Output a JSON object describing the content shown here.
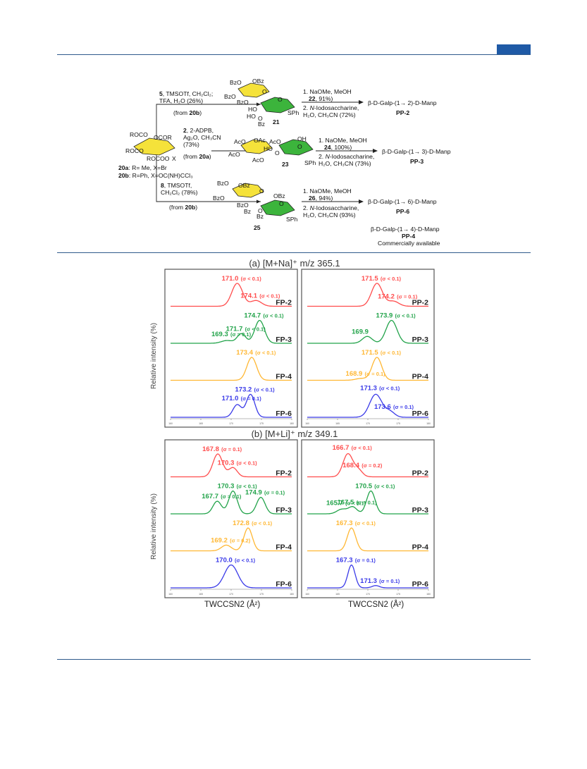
{
  "scheme": {
    "donor_lines": [
      "ROCO",
      "OCOR",
      "ROCO",
      "ROCOO",
      "X"
    ],
    "legend_a": [
      "20a",
      ": R= Me, X=Br"
    ],
    "legend_b": [
      "20b",
      ": R=Ph, X=OC(NH)CCl₃"
    ],
    "route1": {
      "reagents": [
        "5",
        ", TMSOTf, CH₂Cl₂;",
        "TFA, H₂O (26%)",
        "(from ",
        "20b",
        ")"
      ],
      "compound": "21",
      "sugar_labels": [
        "BzO",
        "OBz",
        "BzO",
        "O",
        "BzO",
        "O",
        "HO",
        "HO",
        "O",
        "Bz",
        "SPh"
      ],
      "steps": [
        "1. NaOMe, MeOH",
        "22",
        ", 91%)",
        "2. ",
        "N",
        "-Iodosaccharine,",
        "H₂O, CH₃CN (72%)"
      ],
      "product_text": "β-D-Galp-(1→ 2)-D-Manp",
      "product_code": "PP-2"
    },
    "route2": {
      "reagents": [
        "2",
        ", 2-ADPB,",
        "Ag₂O, CH₃CN",
        "(73%)",
        "(from ",
        "20a",
        ")"
      ],
      "compound": "23",
      "sugar_labels": [
        "AcO",
        "OAc",
        "AcO",
        "OH",
        "AcO",
        "O",
        "HO",
        "AcO",
        "O",
        "SPh"
      ],
      "steps": [
        "1. NaOMe, MeOH",
        "24",
        ", 100%)",
        "2. ",
        "N",
        "-Iodosaccharine,",
        "H₂O, CH₃CN (73%)"
      ],
      "product_text": "β-D-Galp-(1→ 3)-D-Manp",
      "product_code": "PP-3"
    },
    "route3": {
      "reagents": [
        "8",
        ", TMSOTf,",
        "CH₂Cl₂ (78%)",
        "(from ",
        "20b",
        ")"
      ],
      "compound": "25",
      "sugar_labels": [
        "BzO",
        "OBz",
        "BzO",
        "O",
        "BzO",
        "O",
        "OBz",
        "Bz",
        "O",
        "Bz",
        "SPh"
      ],
      "steps": [
        "1. NaOMe, MeOH",
        "26",
        ", 94%)",
        "2. ",
        "N",
        "-Iodosaccharine,",
        "H₂O, CH₃CN (93%)"
      ],
      "product_text": "β-D-Galp-(1→ 6)-D-Manp",
      "product_code": "PP-6"
    },
    "commercial": {
      "product_text": "β-D-Galp-(1→ 4)-D-Manp",
      "product_code": "PP-4",
      "note": "Commercially available"
    }
  },
  "figure": {
    "title_a": "(a) [M+Na]⁺ m/z 365.1",
    "title_b": "(b) [M+Li]⁺ m/z 349.1",
    "ylabel": "Relative intensity (%)",
    "xlabel": "TWCCSN2 (Å²)"
  },
  "chart_data": [
    {
      "type": "line",
      "title": "(a) [M+Na]⁺ m/z 365.1",
      "ylabel": "Relative intensity (%)",
      "xlabel": "TWCCSN2 (Å²)",
      "xlim": [
        160,
        180
      ],
      "panels": [
        {
          "side": "FP",
          "series": [
            {
              "name": "FP-2",
              "color": "#ff4d4d",
              "peaks": [
                {
                  "x": 171.0,
                  "h": 1.0,
                  "w": 0.9
                },
                {
                  "x": 174.1,
                  "h": 0.25,
                  "w": 0.9
                }
              ],
              "labels": [
                {
                  "x": 171.0,
                  "text": "171.0",
                  "sigma": "(σ < 0.1)"
                },
                {
                  "x": 174.1,
                  "text": "174.1",
                  "sigma": "(σ < 0.1)"
                }
              ]
            },
            {
              "name": "FP-3",
              "color": "#22a34a",
              "peaks": [
                {
                  "x": 169.3,
                  "h": 0.12,
                  "w": 0.9
                },
                {
                  "x": 171.7,
                  "h": 0.42,
                  "w": 0.7
                },
                {
                  "x": 174.7,
                  "h": 1.0,
                  "w": 0.8
                }
              ],
              "labels": [
                {
                  "x": 169.3,
                  "text": "169.3",
                  "sigma": "(σ = 0.1)"
                },
                {
                  "x": 171.7,
                  "text": "171.7",
                  "sigma": "(σ < 0.1)"
                },
                {
                  "x": 174.7,
                  "text": "174.7",
                  "sigma": "(σ < 0.1)"
                }
              ]
            },
            {
              "name": "FP-4",
              "color": "#ffb733",
              "peaks": [
                {
                  "x": 173.4,
                  "h": 1.0,
                  "w": 0.8
                }
              ],
              "labels": [
                {
                  "x": 173.4,
                  "text": "173.4",
                  "sigma": "(σ < 0.1)"
                }
              ]
            },
            {
              "name": "FP-6",
              "color": "#3a3ae8",
              "peaks": [
                {
                  "x": 171.0,
                  "h": 0.55,
                  "w": 0.7
                },
                {
                  "x": 173.2,
                  "h": 1.0,
                  "w": 0.7
                }
              ],
              "labels": [
                {
                  "x": 171.0,
                  "text": "171.0",
                  "sigma": "(σ = 0.1)"
                },
                {
                  "x": 173.2,
                  "text": "173.2",
                  "sigma": "(σ < 0.1)"
                }
              ]
            }
          ]
        },
        {
          "side": "PP",
          "series": [
            {
              "name": "PP-2",
              "color": "#ff4d4d",
              "peaks": [
                {
                  "x": 171.5,
                  "h": 1.0,
                  "w": 0.9
                },
                {
                  "x": 174.2,
                  "h": 0.22,
                  "w": 0.9
                }
              ],
              "labels": [
                {
                  "x": 171.5,
                  "text": "171.5",
                  "sigma": "(σ < 0.1)"
                },
                {
                  "x": 174.2,
                  "text": "174.2",
                  "sigma": "(σ = 0.1)"
                }
              ]
            },
            {
              "name": "PP-3",
              "color": "#22a34a",
              "peaks": [
                {
                  "x": 169.9,
                  "h": 0.3,
                  "w": 0.8
                },
                {
                  "x": 173.9,
                  "h": 1.0,
                  "w": 0.9
                }
              ],
              "labels": [
                {
                  "x": 169.9,
                  "text": "169.9",
                  "sigma": ""
                },
                {
                  "x": 173.9,
                  "text": "173.9",
                  "sigma": "(σ < 0.1)"
                }
              ]
            },
            {
              "name": "PP-4",
              "color": "#ffb733",
              "peaks": [
                {
                  "x": 168.9,
                  "h": 0.08,
                  "w": 0.9
                },
                {
                  "x": 171.5,
                  "h": 1.0,
                  "w": 0.8
                }
              ],
              "labels": [
                {
                  "x": 168.9,
                  "text": "168.9",
                  "sigma": "(σ = 0.1)"
                },
                {
                  "x": 171.5,
                  "text": "171.5",
                  "sigma": "(σ < 0.1)"
                }
              ]
            },
            {
              "name": "PP-6",
              "color": "#3a3ae8",
              "peaks": [
                {
                  "x": 171.3,
                  "h": 1.0,
                  "w": 1.0
                },
                {
                  "x": 173.6,
                  "h": 0.25,
                  "w": 0.8
                }
              ],
              "labels": [
                {
                  "x": 171.3,
                  "text": "171.3",
                  "sigma": "(σ < 0.1)"
                },
                {
                  "x": 173.6,
                  "text": "173.6",
                  "sigma": "(σ = 0.1)"
                }
              ]
            }
          ]
        }
      ]
    },
    {
      "type": "line",
      "title": "(b) [M+Li]⁺ m/z 349.1",
      "ylabel": "Relative intensity (%)",
      "xlabel": "TWCCSN2 (Å²)",
      "xlim": [
        160,
        180
      ],
      "panels": [
        {
          "side": "FP",
          "series": [
            {
              "name": "FP-2",
              "color": "#ff4d4d",
              "peaks": [
                {
                  "x": 167.8,
                  "h": 1.0,
                  "w": 0.8
                },
                {
                  "x": 170.3,
                  "h": 0.4,
                  "w": 0.7
                }
              ],
              "labels": [
                {
                  "x": 167.8,
                  "text": "167.8",
                  "sigma": "(σ = 0.1)"
                },
                {
                  "x": 170.3,
                  "text": "170.3",
                  "sigma": "(σ < 0.1)"
                }
              ]
            },
            {
              "name": "FP-3",
              "color": "#22a34a",
              "peaks": [
                {
                  "x": 167.7,
                  "h": 0.55,
                  "w": 0.7
                },
                {
                  "x": 170.3,
                  "h": 1.0,
                  "w": 0.7
                },
                {
                  "x": 174.9,
                  "h": 0.72,
                  "w": 0.7
                }
              ],
              "labels": [
                {
                  "x": 167.7,
                  "text": "167.7",
                  "sigma": "(σ = 0.1)"
                },
                {
                  "x": 170.3,
                  "text": "170.3",
                  "sigma": "(σ < 0.1)"
                },
                {
                  "x": 174.9,
                  "text": "174.9",
                  "sigma": "(σ = 0.1)"
                }
              ]
            },
            {
              "name": "FP-4",
              "color": "#ffb733",
              "peaks": [
                {
                  "x": 169.2,
                  "h": 0.25,
                  "w": 0.8
                },
                {
                  "x": 172.8,
                  "h": 1.0,
                  "w": 0.7
                }
              ],
              "labels": [
                {
                  "x": 169.2,
                  "text": "169.2",
                  "sigma": "(σ = 0.2)"
                },
                {
                  "x": 172.8,
                  "text": "172.8",
                  "sigma": "(σ < 0.1)"
                }
              ]
            },
            {
              "name": "FP-6",
              "color": "#3a3ae8",
              "peaks": [
                {
                  "x": 170.0,
                  "h": 1.0,
                  "w": 1.1
                }
              ],
              "labels": [
                {
                  "x": 170.0,
                  "text": "170.0",
                  "sigma": "(σ < 0.1)"
                }
              ]
            }
          ]
        },
        {
          "side": "PP",
          "series": [
            {
              "name": "PP-2",
              "color": "#ff4d4d",
              "peaks": [
                {
                  "x": 166.7,
                  "h": 1.0,
                  "w": 0.8
                },
                {
                  "x": 168.4,
                  "h": 0.3,
                  "w": 0.7
                }
              ],
              "labels": [
                {
                  "x": 166.7,
                  "text": "166.7",
                  "sigma": "(σ < 0.1)"
                },
                {
                  "x": 168.4,
                  "text": "168.4",
                  "sigma": "(σ = 0.2)"
                }
              ]
            },
            {
              "name": "PP-3",
              "color": "#22a34a",
              "peaks": [
                {
                  "x": 165.7,
                  "h": 0.2,
                  "w": 0.8
                },
                {
                  "x": 167.5,
                  "h": 0.3,
                  "w": 0.7
                },
                {
                  "x": 170.5,
                  "h": 1.0,
                  "w": 0.7
                }
              ],
              "labels": [
                {
                  "x": 165.7,
                  "text": "165.7",
                  "sigma": "(σ < 0.1)"
                },
                {
                  "x": 167.5,
                  "text": "167.5",
                  "sigma": "(σ = 0.1)"
                },
                {
                  "x": 170.5,
                  "text": "170.5",
                  "sigma": "(σ < 0.1)"
                }
              ]
            },
            {
              "name": "PP-4",
              "color": "#ffb733",
              "peaks": [
                {
                  "x": 167.3,
                  "h": 1.0,
                  "w": 0.7
                }
              ],
              "labels": [
                {
                  "x": 167.3,
                  "text": "167.3",
                  "sigma": "(σ < 0.1)"
                }
              ]
            },
            {
              "name": "PP-6",
              "color": "#3a3ae8",
              "peaks": [
                {
                  "x": 167.3,
                  "h": 1.0,
                  "w": 0.6
                },
                {
                  "x": 171.3,
                  "h": 0.1,
                  "w": 0.6
                }
              ],
              "labels": [
                {
                  "x": 167.3,
                  "text": "167.3",
                  "sigma": "(σ = 0.1)"
                },
                {
                  "x": 171.3,
                  "text": "171.3",
                  "sigma": "(σ = 0.1)"
                }
              ]
            }
          ]
        }
      ]
    }
  ]
}
